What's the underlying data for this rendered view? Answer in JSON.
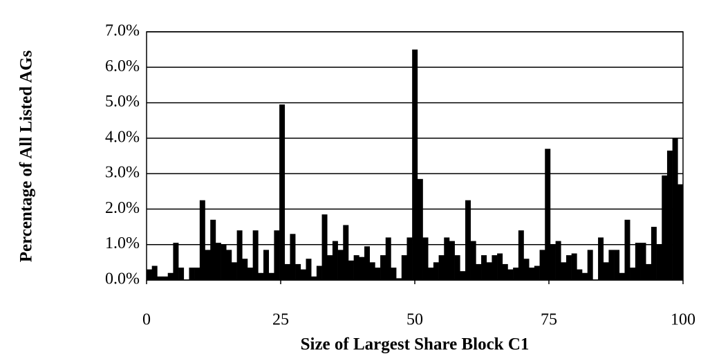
{
  "chart_data": {
    "type": "bar",
    "xlabel": "Size of Largest Share Block C1",
    "ylabel": "Percentage of All Listed AGs",
    "x": [
      0,
      1,
      2,
      3,
      4,
      5,
      6,
      7,
      8,
      9,
      10,
      11,
      12,
      13,
      14,
      15,
      16,
      17,
      18,
      19,
      20,
      21,
      22,
      23,
      24,
      25,
      26,
      27,
      28,
      29,
      30,
      31,
      32,
      33,
      34,
      35,
      36,
      37,
      38,
      39,
      40,
      41,
      42,
      43,
      44,
      45,
      46,
      47,
      48,
      49,
      50,
      51,
      52,
      53,
      54,
      55,
      56,
      57,
      58,
      59,
      60,
      61,
      62,
      63,
      64,
      65,
      66,
      67,
      68,
      69,
      70,
      71,
      72,
      73,
      74,
      75,
      76,
      77,
      78,
      79,
      80,
      81,
      82,
      83,
      84,
      85,
      86,
      87,
      88,
      89,
      90,
      91,
      92,
      93,
      94,
      95,
      96,
      97,
      98,
      99,
      100
    ],
    "values": [
      0.3,
      0.4,
      0.1,
      0.1,
      0.2,
      1.05,
      0.35,
      0.0,
      0.35,
      0.35,
      2.25,
      0.85,
      1.7,
      1.05,
      1.0,
      0.85,
      0.5,
      1.4,
      0.6,
      0.35,
      1.4,
      0.2,
      0.85,
      0.2,
      1.4,
      4.95,
      0.45,
      1.3,
      0.45,
      0.3,
      0.6,
      0.1,
      0.4,
      1.85,
      0.7,
      1.1,
      0.85,
      1.55,
      0.55,
      0.7,
      0.65,
      0.95,
      0.5,
      0.35,
      0.7,
      1.2,
      0.35,
      0.05,
      0.7,
      1.2,
      6.5,
      2.85,
      1.2,
      0.35,
      0.5,
      0.7,
      1.2,
      1.1,
      0.7,
      0.25,
      2.25,
      1.1,
      0.45,
      0.7,
      0.5,
      0.7,
      0.75,
      0.45,
      0.3,
      0.35,
      1.4,
      0.6,
      0.35,
      0.4,
      0.85,
      3.7,
      1.0,
      1.1,
      0.5,
      0.7,
      0.75,
      0.3,
      0.2,
      0.85,
      0.0,
      1.2,
      0.5,
      0.85,
      0.85,
      0.2,
      1.7,
      0.35,
      1.05,
      1.05,
      0.45,
      1.5,
      1.0,
      2.95,
      3.65,
      4.0,
      2.7
    ],
    "color": "#000000",
    "xlim": [
      0,
      100
    ],
    "xticks": [
      0,
      25,
      50,
      75,
      100
    ],
    "ylim": [
      0,
      7
    ],
    "yticks": [
      {
        "value": 0,
        "label": "0.0%"
      },
      {
        "value": 1,
        "label": "1.0%"
      },
      {
        "value": 2,
        "label": "2.0%"
      },
      {
        "value": 3,
        "label": "3.0%"
      },
      {
        "value": 4,
        "label": "4.0%"
      },
      {
        "value": 5,
        "label": "5.0%"
      },
      {
        "value": 6,
        "label": "6.0%"
      },
      {
        "value": 7,
        "label": "7.0%"
      }
    ],
    "grid": true
  }
}
